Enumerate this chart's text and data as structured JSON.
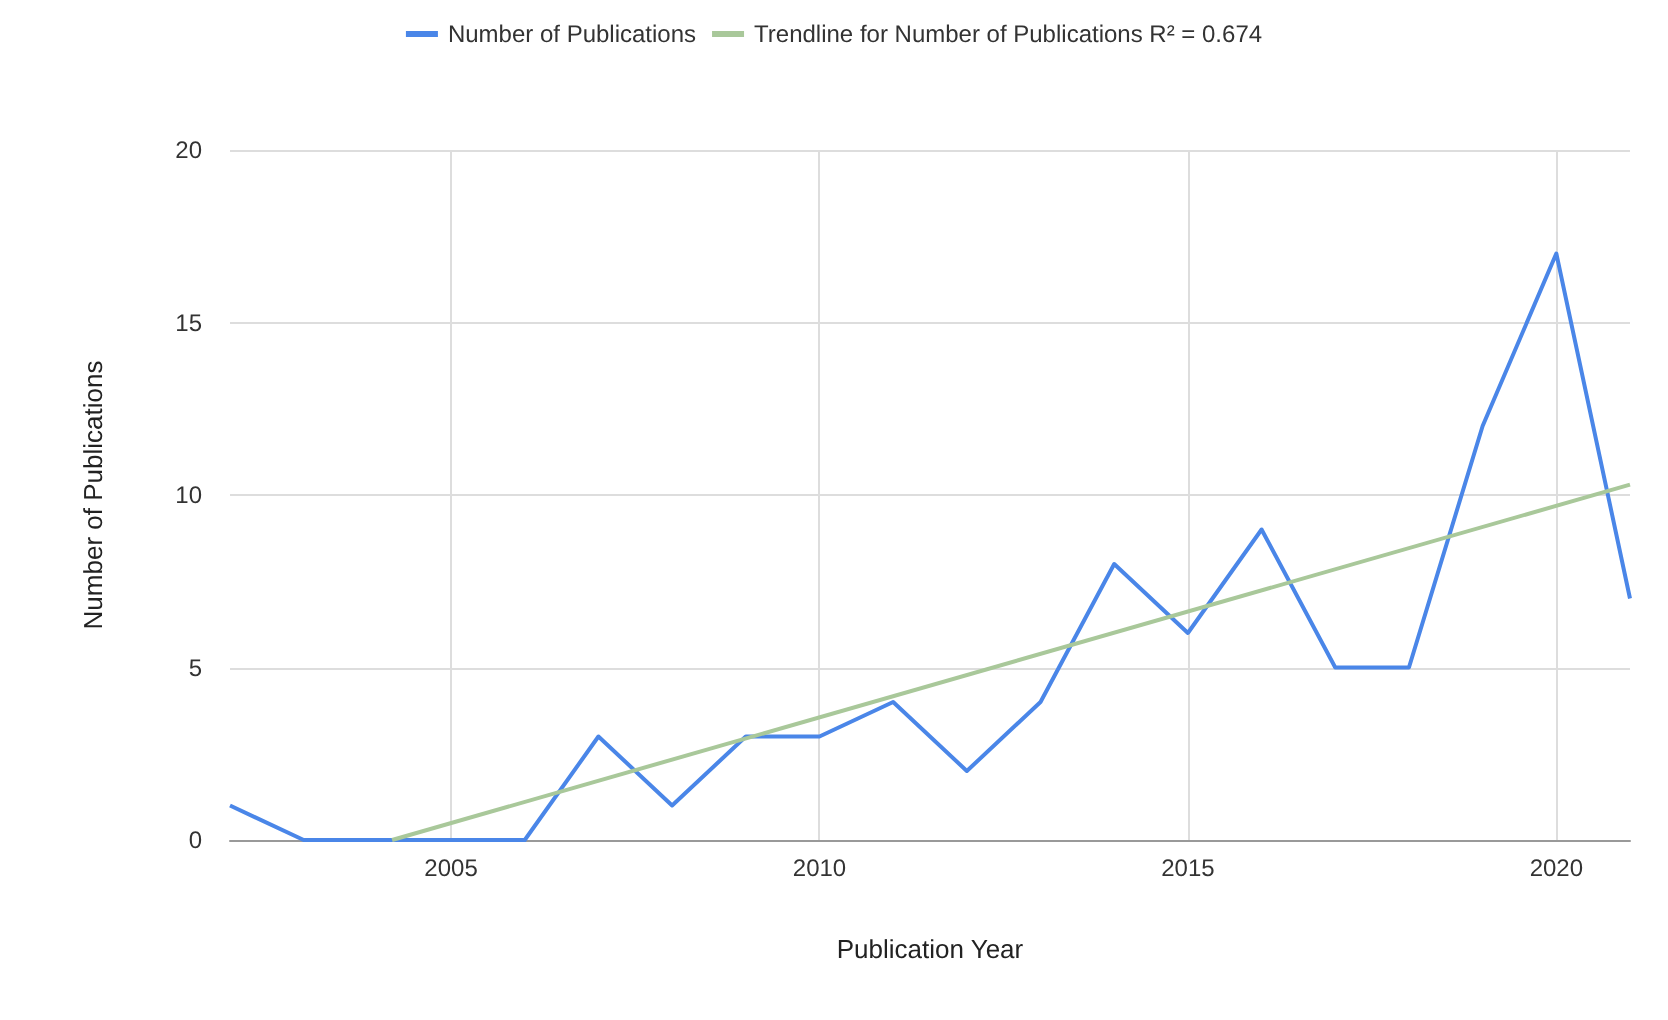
{
  "chart_data": {
    "type": "line",
    "xlabel": "Publication Year",
    "ylabel": "Number of Publications",
    "x": [
      2002,
      2003,
      2004,
      2005,
      2006,
      2007,
      2008,
      2009,
      2010,
      2011,
      2012,
      2013,
      2014,
      2015,
      2016,
      2017,
      2018,
      2019,
      2020,
      2021
    ],
    "series": [
      {
        "name": "Number of Publications",
        "color": "#4a86e8",
        "values": [
          1,
          0,
          0,
          0,
          0,
          3,
          1,
          3,
          3,
          4,
          2,
          4,
          8,
          6,
          9,
          5,
          5,
          12,
          17,
          7
        ]
      },
      {
        "name": "Trendline for Number of Publications R² = 0.674",
        "color": "#a9c89a",
        "type": "line",
        "x": [
          2004.2,
          2021
        ],
        "values": [
          0,
          10.3
        ]
      }
    ],
    "xlim": [
      2002,
      2021
    ],
    "ylim": [
      0,
      20
    ],
    "xticks": [
      2005,
      2010,
      2015,
      2020
    ],
    "yticks": [
      0,
      5,
      10,
      15,
      20
    ],
    "grid": true,
    "legend": "top",
    "marker": "none"
  }
}
